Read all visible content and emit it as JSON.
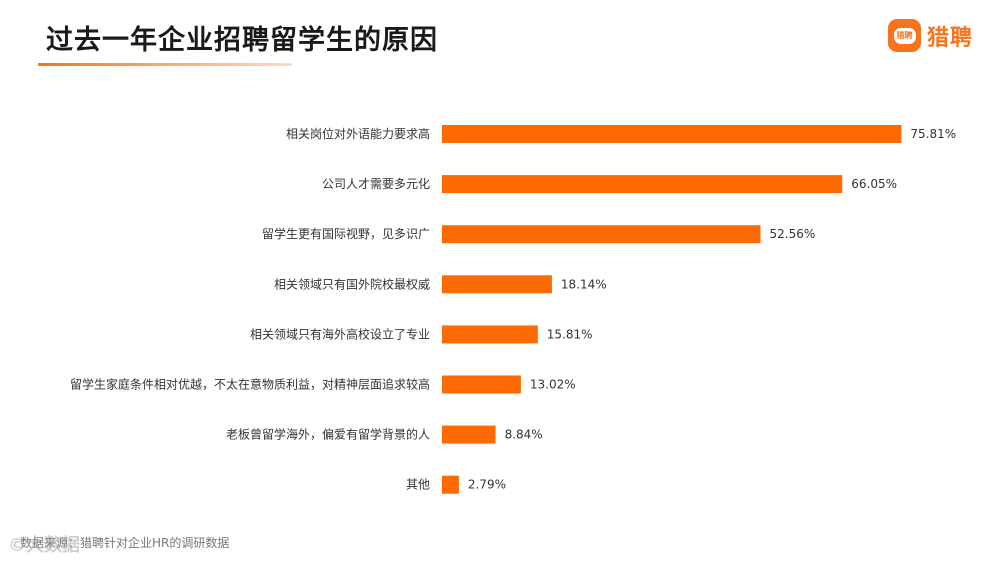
{
  "header": {
    "title": "过去一年企业招聘留学生的原因",
    "accent_color": "#f7731c",
    "logo_text": "猎聘",
    "logo_mark_text": "猎聘"
  },
  "chart_data": {
    "type": "bar",
    "orientation": "horizontal",
    "title": "过去一年企业招聘留学生的原因",
    "categories": [
      "相关岗位对外语能力要求高",
      "公司人才需要多元化",
      "留学生更有国际视野，见多识广",
      "相关领域只有国外院校最权威",
      "相关领域只有海外高校设立了专业",
      "留学生家庭条件相对优越，不太在意物质利益，对精神层面追求较高",
      "老板曾留学海外，偏爱有留学背景的人",
      "其他"
    ],
    "values": [
      75.81,
      66.05,
      52.56,
      18.14,
      15.81,
      13.02,
      8.84,
      2.79
    ],
    "value_labels": [
      "75.81%",
      "66.05%",
      "52.56%",
      "18.14%",
      "15.81%",
      "13.02%",
      "8.84%",
      "2.79%"
    ],
    "unit": "%",
    "bar_color": "#ff6a00",
    "xlim": [
      0,
      100
    ],
    "grid": false,
    "legend": "none"
  },
  "footer": {
    "source": "数据来源：猎聘针对企业HR的调研数据",
    "watermark": "©大数据"
  }
}
